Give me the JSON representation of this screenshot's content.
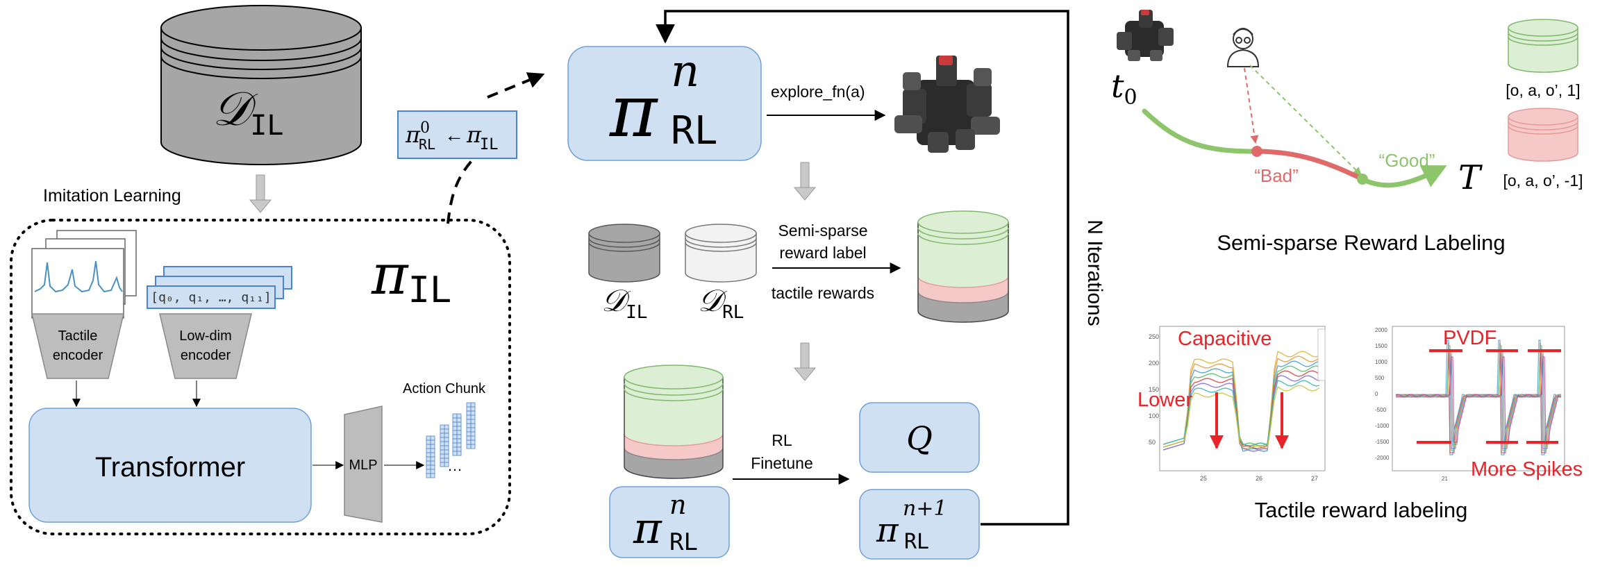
{
  "il": {
    "dataset_symbol": "𝒟",
    "dataset_sub": "IL",
    "section_label": "Imitation Learning",
    "policy_symbol": "π",
    "policy_sub": "IL",
    "tactile_encoder": [
      "Tactile",
      "encoder"
    ],
    "lowdim_encoder": [
      "Low-dim",
      "encoder"
    ],
    "lowdim_vector": "[q₀, q₁, …, q₁₁]",
    "transformer": "Transformer",
    "mlp": "MLP",
    "action_chunk": "Action Chunk",
    "ellipsis": "…"
  },
  "init": {
    "pi": "π",
    "sup": "0",
    "sub": "RL",
    "arrow": "←",
    "pi2": "π",
    "sub2": "IL"
  },
  "rl": {
    "policy_pi": "π",
    "policy_sup": "n",
    "policy_sub": "RL",
    "explore": "explore_fn(a)",
    "d_il_symbol": "𝒟",
    "d_il_sub": "IL",
    "d_rl_symbol": "𝒟",
    "d_rl_sub": "RL",
    "semi_sparse": [
      "Semi-sparse",
      "reward label"
    ],
    "tactile_rewards": "tactile rewards",
    "rl_finetune": [
      "RL",
      "Finetune"
    ],
    "q": "Q",
    "next_policy_sup": "n+1",
    "loop_label": "N Iterations"
  },
  "semi": {
    "t0": "t",
    "t0_sub": "0",
    "T": "T",
    "bad": "“Bad”",
    "good": "“Good”",
    "pos_tuple": "[o, a, o’, 1]",
    "neg_tuple": "[o, a, o’, -1]",
    "title": "Semi-sparse Reward Labeling"
  },
  "tactile": {
    "capacitive": "Capacitive",
    "lower": "Lower",
    "pvdf": "PVDF",
    "more_spikes": "More Spikes",
    "title": "Tactile reward labeling",
    "cap_yticks": [
      "250",
      "200",
      "150",
      "100",
      "50"
    ],
    "cap_xticks": [
      "25",
      "26",
      "27"
    ],
    "pvdf_yticks": [
      "2000",
      "1500",
      "1000",
      "500",
      "0",
      "-500",
      "-1000",
      "-1500",
      "-2000"
    ],
    "pvdf_xticks": [
      "21"
    ]
  },
  "colors": {
    "blue_fill": "#cfe0f3",
    "blue_stroke": "#6f9fd6",
    "gray_db": "#a6a6a6",
    "green_db": "#dcefd4",
    "pink_db": "#f6c9c9",
    "accent_red": "#e8232a",
    "traj_green": "#8cc56a",
    "traj_red": "#e06a6a"
  }
}
